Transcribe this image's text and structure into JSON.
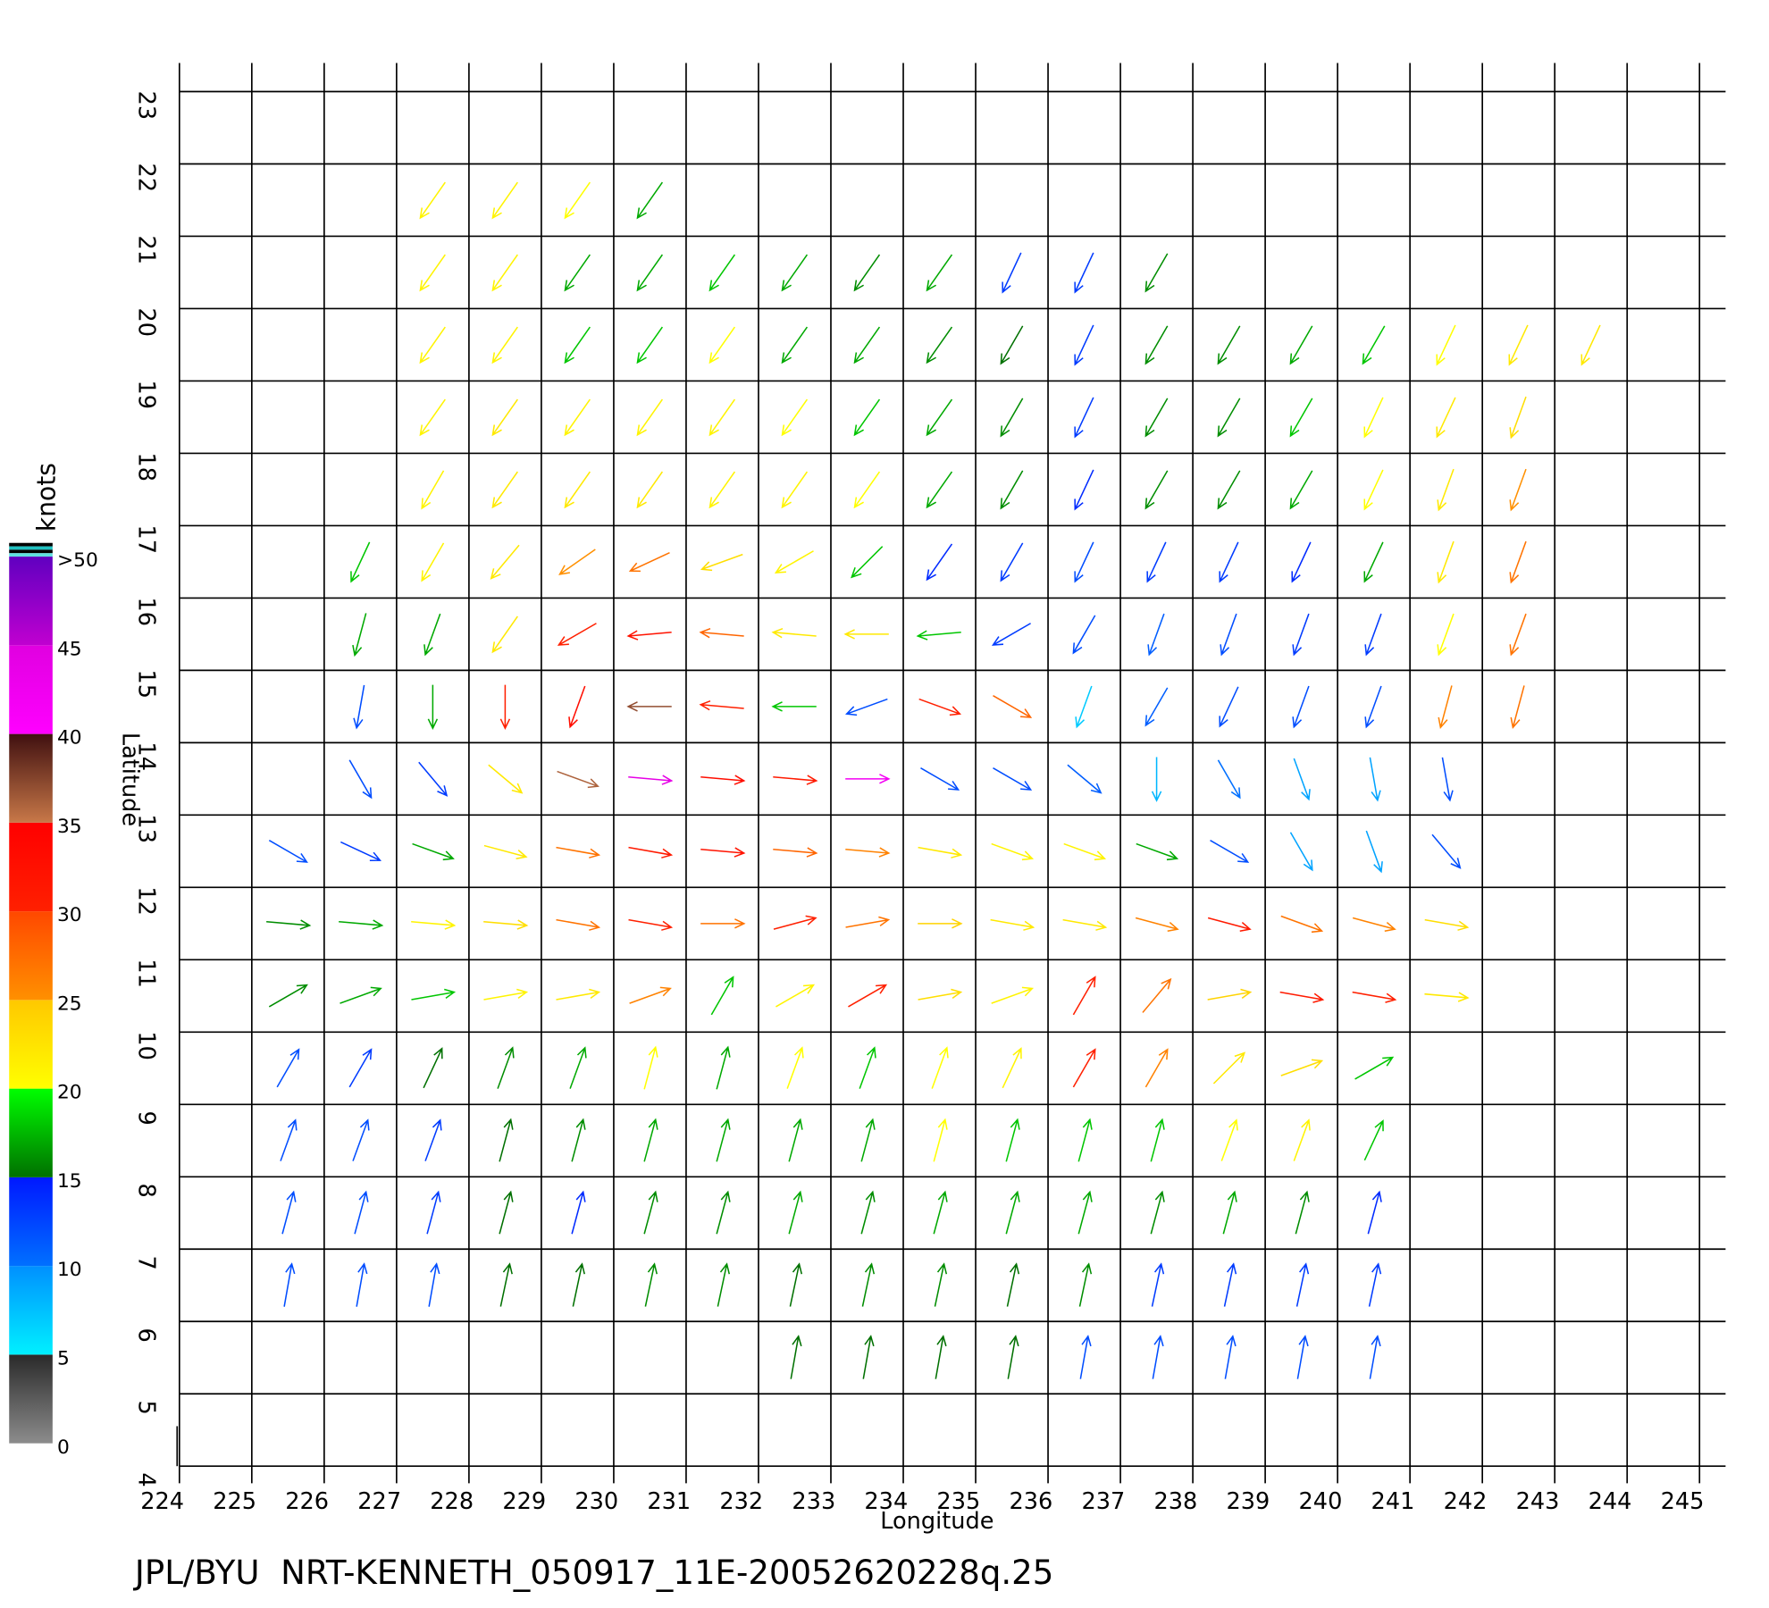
{
  "chart_data": {
    "type": "quiver",
    "x_label": "Longitude",
    "y_label": "Latitude",
    "footer": "JPL/BYU  NRT-KENNETH_050917_11E-20052620228q.25",
    "xlim": [
      224,
      245.36
    ],
    "xticks": [
      224,
      225,
      226,
      227,
      228,
      229,
      230,
      231,
      232,
      233,
      234,
      235,
      236,
      237,
      238,
      239,
      240,
      241,
      242,
      243,
      244,
      245
    ],
    "ylim": [
      4,
      23
    ],
    "yticks": [
      4,
      5,
      6,
      7,
      8,
      9,
      10,
      11,
      12,
      13,
      14,
      15,
      16,
      17,
      18,
      19,
      20,
      21,
      22,
      23
    ],
    "grid": true,
    "colorbar": {
      "label": "knots",
      "lim": [
        0,
        50
      ],
      "ticks": [
        0,
        5,
        10,
        15,
        20,
        25,
        30,
        35,
        40,
        45,
        {
          "value": 50,
          "label": ">50"
        }
      ],
      "colors": [
        [
          "#8c8c8c",
          "#2a2a2a"
        ],
        [
          "#00f0ff",
          "#0090ff"
        ],
        [
          "#0070ff",
          "#0018ff"
        ],
        [
          "#007000",
          "#00ff00"
        ],
        [
          "#ffff00",
          "#ffc800"
        ],
        [
          "#ff9000",
          "#ff4800"
        ],
        [
          "#ff2000",
          "#ff0000"
        ],
        [
          "#c87848",
          "#401010"
        ],
        [
          "#ff00ff",
          "#e000e0"
        ],
        [
          "#c000d0",
          "#6000c0"
        ]
      ]
    },
    "rows": [
      {
        "lat": 21.5,
        "lon": [
          227.5,
          228.5,
          229.5,
          230.5
        ],
        "direction": [
          215,
          215,
          215,
          215
        ],
        "speed": [
          21,
          21,
          20,
          17
        ]
      },
      {
        "lat": 20.5,
        "lon": [
          227.5,
          228.5,
          229.5,
          230.5,
          231.5,
          232.5,
          233.5,
          234.5,
          235.5,
          236.5,
          237.5
        ],
        "direction": [
          215,
          215,
          215,
          215,
          215,
          215,
          215,
          215,
          205,
          205,
          210
        ],
        "speed": [
          21,
          21,
          17,
          17,
          18,
          17,
          16,
          17,
          13,
          13,
          16
        ]
      },
      {
        "lat": 19.5,
        "lon": [
          227.5,
          228.5,
          229.5,
          230.5,
          231.5,
          232.5,
          233.5,
          234.5,
          235.5,
          236.5,
          237.5,
          238.5,
          239.5,
          240.5,
          241.5,
          242.5,
          243.5
        ],
        "direction": [
          215,
          215,
          215,
          215,
          215,
          215,
          215,
          215,
          210,
          205,
          210,
          210,
          210,
          210,
          205,
          205,
          205
        ],
        "speed": [
          21,
          21,
          18,
          18,
          20,
          17,
          17,
          16,
          15,
          13,
          16,
          16,
          17,
          18,
          20,
          22,
          22
        ]
      },
      {
        "lat": 18.5,
        "lon": [
          227.5,
          228.5,
          229.5,
          230.5,
          231.5,
          232.5,
          233.5,
          234.5,
          235.5,
          236.5,
          237.5,
          238.5,
          239.5,
          240.5,
          241.5,
          242.5
        ],
        "direction": [
          215,
          215,
          215,
          215,
          215,
          215,
          215,
          215,
          210,
          205,
          210,
          210,
          210,
          205,
          205,
          200
        ],
        "speed": [
          21,
          22,
          21,
          21,
          21,
          20,
          18,
          17,
          16,
          13,
          16,
          16,
          18,
          20,
          22,
          23
        ]
      },
      {
        "lat": 17.5,
        "lon": [
          227.5,
          228.5,
          229.5,
          230.5,
          231.5,
          232.5,
          233.5,
          234.5,
          235.5,
          236.5,
          237.5,
          238.5,
          239.5,
          240.5,
          241.5,
          242.5
        ],
        "direction": [
          210,
          215,
          215,
          215,
          215,
          215,
          215,
          215,
          210,
          205,
          210,
          210,
          210,
          205,
          200,
          200
        ],
        "speed": [
          21,
          22,
          22,
          22,
          21,
          21,
          20,
          17,
          16,
          14,
          16,
          16,
          17,
          20,
          22,
          25
        ]
      },
      {
        "lat": 16.5,
        "lon": [
          226.5,
          227.5,
          228.5,
          229.5,
          230.5,
          231.5,
          232.5,
          233.5,
          234.5,
          235.5,
          236.5,
          237.5,
          238.5,
          239.5,
          240.5,
          241.5,
          242.5
        ],
        "direction": [
          205,
          210,
          220,
          235,
          245,
          250,
          240,
          225,
          215,
          210,
          205,
          205,
          205,
          205,
          205,
          200,
          200
        ],
        "speed": [
          18,
          21,
          22,
          25,
          27,
          23,
          21,
          18,
          14,
          13,
          12,
          13,
          13,
          14,
          17,
          22,
          27
        ]
      },
      {
        "lat": 15.5,
        "lon": [
          226.5,
          227.5,
          228.5,
          229.5,
          230.5,
          231.5,
          232.5,
          233.5,
          234.5,
          235.5,
          236.5,
          237.5,
          238.5,
          239.5,
          240.5,
          241.5,
          242.5
        ],
        "direction": [
          195,
          200,
          215,
          240,
          265,
          275,
          275,
          270,
          265,
          240,
          210,
          200,
          200,
          200,
          200,
          200,
          200
        ],
        "speed": [
          17,
          17,
          22,
          30,
          32,
          28,
          22,
          22,
          18,
          13,
          12,
          11,
          12,
          13,
          13,
          20,
          27
        ]
      },
      {
        "lat": 14.5,
        "lon": [
          226.5,
          227.5,
          228.5,
          229.5,
          230.5,
          231.5,
          232.5,
          233.5,
          234.5,
          235.5,
          236.5,
          237.5,
          238.5,
          239.5,
          240.5,
          241.5,
          242.5
        ],
        "direction": [
          190,
          180,
          180,
          200,
          270,
          275,
          270,
          250,
          110,
          120,
          200,
          210,
          205,
          200,
          200,
          195,
          195
        ],
        "speed": [
          12,
          17,
          30,
          33,
          37,
          30,
          18,
          12,
          30,
          28,
          7,
          11,
          12,
          12,
          12,
          26,
          27
        ]
      },
      {
        "lat": 13.5,
        "lon": [
          226.5,
          227.5,
          228.5,
          229.5,
          230.5,
          231.5,
          232.5,
          233.5,
          234.5,
          235.5,
          236.5,
          237.5,
          238.5,
          239.5,
          240.5,
          241.5
        ],
        "direction": [
          150,
          140,
          130,
          110,
          95,
          95,
          95,
          90,
          120,
          120,
          130,
          180,
          150,
          160,
          170,
          170
        ],
        "speed": [
          12,
          13,
          22,
          36,
          44,
          33,
          31,
          42,
          12,
          12,
          11,
          8,
          10,
          9,
          9,
          12
        ]
      },
      {
        "lat": 12.5,
        "lon": [
          225.5,
          226.5,
          227.5,
          228.5,
          229.5,
          230.5,
          231.5,
          232.5,
          233.5,
          234.5,
          235.5,
          236.5,
          237.5,
          238.5,
          239.5,
          240.5,
          241.5
        ],
        "direction": [
          120,
          115,
          110,
          105,
          100,
          100,
          95,
          95,
          95,
          100,
          110,
          110,
          110,
          120,
          150,
          160,
          140
        ],
        "speed": [
          12,
          13,
          17,
          22,
          27,
          31,
          32,
          28,
          26,
          22,
          21,
          21,
          17,
          12,
          9,
          9,
          12
        ]
      },
      {
        "lat": 11.5,
        "lon": [
          225.5,
          226.5,
          227.5,
          228.5,
          229.5,
          230.5,
          231.5,
          232.5,
          233.5,
          234.5,
          235.5,
          236.5,
          237.5,
          238.5,
          239.5,
          240.5,
          241.5
        ],
        "direction": [
          95,
          95,
          95,
          95,
          100,
          100,
          90,
          75,
          80,
          90,
          100,
          100,
          105,
          105,
          110,
          105,
          100
        ],
        "speed": [
          16,
          17,
          21,
          23,
          27,
          30,
          27,
          30,
          27,
          24,
          22,
          22,
          26,
          31,
          27,
          26,
          23
        ]
      },
      {
        "lat": 10.5,
        "lon": [
          225.5,
          226.5,
          227.5,
          228.5,
          229.5,
          230.5,
          231.5,
          232.5,
          233.5,
          234.5,
          235.5,
          236.5,
          237.5,
          238.5,
          239.5,
          240.5,
          241.5
        ],
        "direction": [
          60,
          70,
          80,
          80,
          80,
          70,
          30,
          60,
          60,
          80,
          70,
          30,
          40,
          80,
          100,
          100,
          95
        ],
        "speed": [
          16,
          17,
          18,
          21,
          22,
          26,
          18,
          21,
          30,
          23,
          21,
          30,
          27,
          24,
          31,
          30,
          22
        ]
      },
      {
        "lat": 9.5,
        "lon": [
          225.5,
          226.5,
          227.5,
          228.5,
          229.5,
          230.5,
          231.5,
          232.5,
          233.5,
          234.5,
          235.5,
          236.5,
          237.5,
          238.5,
          239.5,
          240.5
        ],
        "direction": [
          30,
          30,
          25,
          20,
          20,
          15,
          15,
          20,
          20,
          20,
          25,
          30,
          30,
          45,
          70,
          60
        ],
        "speed": [
          12,
          13,
          15,
          16,
          17,
          20,
          17,
          20,
          18,
          20,
          21,
          30,
          26,
          22,
          23,
          18
        ]
      },
      {
        "lat": 8.5,
        "lon": [
          225.5,
          226.5,
          227.5,
          228.5,
          229.5,
          230.5,
          231.5,
          232.5,
          233.5,
          234.5,
          235.5,
          236.5,
          237.5,
          238.5,
          239.5,
          240.5
        ],
        "direction": [
          20,
          20,
          20,
          15,
          15,
          15,
          15,
          15,
          15,
          15,
          15,
          15,
          15,
          20,
          20,
          25
        ],
        "speed": [
          12,
          12,
          13,
          15,
          16,
          17,
          17,
          17,
          17,
          20,
          18,
          18,
          18,
          20,
          21,
          18
        ]
      },
      {
        "lat": 7.5,
        "lon": [
          225.5,
          226.5,
          227.5,
          228.5,
          229.5,
          230.5,
          231.5,
          232.5,
          233.5,
          234.5,
          235.5,
          236.5,
          237.5,
          238.5,
          239.5,
          240.5
        ],
        "direction": [
          15,
          15,
          15,
          15,
          15,
          15,
          15,
          15,
          15,
          15,
          15,
          15,
          15,
          15,
          15,
          15
        ],
        "speed": [
          12,
          12,
          13,
          15,
          14,
          16,
          16,
          17,
          16,
          17,
          17,
          17,
          16,
          17,
          16,
          14
        ]
      },
      {
        "lat": 6.5,
        "lon": [
          225.5,
          226.5,
          227.5,
          228.5,
          229.5,
          230.5,
          231.5,
          232.5,
          233.5,
          234.5,
          235.5,
          236.5,
          237.5,
          238.5,
          239.5,
          240.5
        ],
        "direction": [
          10,
          10,
          10,
          12,
          12,
          12,
          12,
          12,
          12,
          12,
          12,
          12,
          12,
          12,
          12,
          12
        ],
        "speed": [
          12,
          12,
          12,
          15,
          15,
          16,
          16,
          15,
          16,
          16,
          15,
          16,
          13,
          13,
          13,
          13
        ]
      },
      {
        "lat": 5.5,
        "lon": [
          232.5,
          233.5,
          234.5,
          235.5,
          236.5,
          237.5,
          238.5,
          239.5,
          240.5
        ],
        "direction": [
          10,
          10,
          10,
          10,
          10,
          10,
          10,
          10,
          10
        ],
        "speed": [
          15,
          15,
          15,
          15,
          12,
          12,
          12,
          12,
          12
        ]
      }
    ]
  }
}
